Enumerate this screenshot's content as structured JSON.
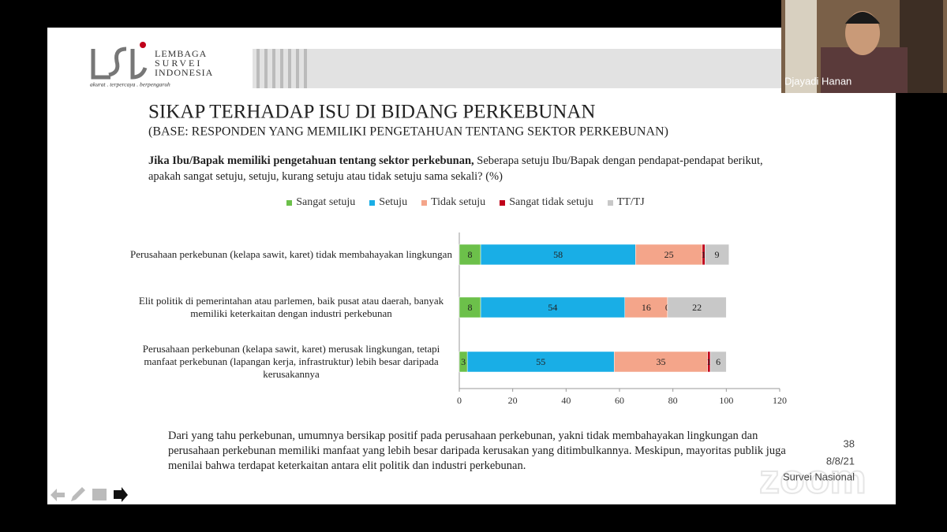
{
  "logo": {
    "line1": "LEMBAGA",
    "line2": "SURVEI",
    "line3": "INDONESIA",
    "tagline": "akurat . terpercaya . berpengaruh"
  },
  "slide": {
    "title": "SIKAP TERHADAP ISU DI BIDANG PERKEBUNAN",
    "subtitle": "(BASE: RESPONDEN YANG MEMILIKI PENGETAHUAN TENTANG SEKTOR PERKEBUNAN)",
    "question_bold": "Jika Ibu/Bapak memiliki pengetahuan tentang sektor perkebunan,",
    "question_text": "Seberapa setuju Ibu/Bapak dengan pendapat-pendapat berikut, apakah sangat setuju, setuju, kurang setuju atau tidak setuju sama sekali? (%)",
    "summary": "Dari yang tahu perkebunan, umumnya bersikap positif pada perusahaan perkebunan, yakni tidak membahayakan lingkungan dan perusahaan perkebunan memiliki manfaat yang lebih besar daripada kerusakan yang ditimbulkannya. Meskipun, mayoritas publik juga menilai bahwa terdapat keterkaitan antara elit politik dan industri perkebunan.",
    "page_number": "38",
    "date": "8/8/21",
    "footer": "Survei Nasional"
  },
  "chart_data": {
    "type": "bar",
    "orientation": "horizontal",
    "stacked": true,
    "categories": [
      "Perusahaan perkebunan (kelapa sawit, karet)  tidak membahayakan lingkungan",
      "Elit politik di pemerintahan atau parlemen, baik pusat atau daerah, banyak memiliki keterkaitan dengan industri perkebunan",
      "Perusahaan perkebunan (kelapa sawit, karet) merusak lingkungan, tetapi manfaat perkebunan (lapangan kerja, infrastruktur) lebih besar daripada kerusakannya"
    ],
    "series": [
      {
        "name": "Sangat setuju",
        "color": "#6cc04a",
        "values": [
          8,
          8,
          3
        ]
      },
      {
        "name": "Setuju",
        "color": "#19aee6",
        "values": [
          58,
          54,
          55
        ]
      },
      {
        "name": "Tidak setuju",
        "color": "#f4a58a",
        "values": [
          25,
          16,
          35
        ]
      },
      {
        "name": "Sangat tidak setuju",
        "color": "#c0001a",
        "values": [
          1,
          0,
          1
        ]
      },
      {
        "name": "TT/TJ",
        "color": "#c8c8c8",
        "values": [
          9,
          22,
          6
        ]
      }
    ],
    "xlim": [
      0,
      120
    ],
    "xticks": [
      0,
      20,
      40,
      60,
      80,
      100,
      120
    ],
    "legend": "top"
  },
  "meeting": {
    "participant": "Djayadi Hanan",
    "watermark": "zoom"
  }
}
